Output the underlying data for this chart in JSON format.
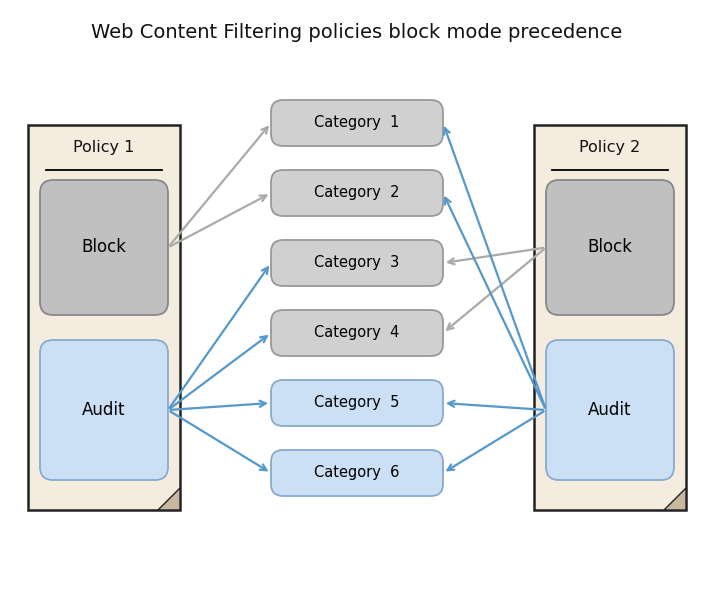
{
  "title": "Web Content Filtering policies block mode precedence",
  "title_fontsize": 14,
  "bg_color": "#ffffff",
  "policy_bg": "#f5ece0",
  "policy_border": "#222222",
  "block_fill": "#c0c0c0",
  "audit_fill": "#cce0f5",
  "cat_gray_fill": "#d0d0d0",
  "cat_blue_fill": "#cce0f5",
  "cat_gray_border": "#999999",
  "cat_blue_border": "#88aacc",
  "inner_border": "#888888",
  "arrow_gray": "#aaaaaa",
  "arrow_blue": "#5599cc",
  "categories": [
    "Category  1",
    "Category  2",
    "Category  3",
    "Category  4",
    "Category  5",
    "Category  6"
  ],
  "policy1_label": "Policy 1",
  "policy2_label": "Policy 2",
  "block_label": "Block",
  "audit_label": "Audit",
  "fold_color": "#c8b8a0"
}
